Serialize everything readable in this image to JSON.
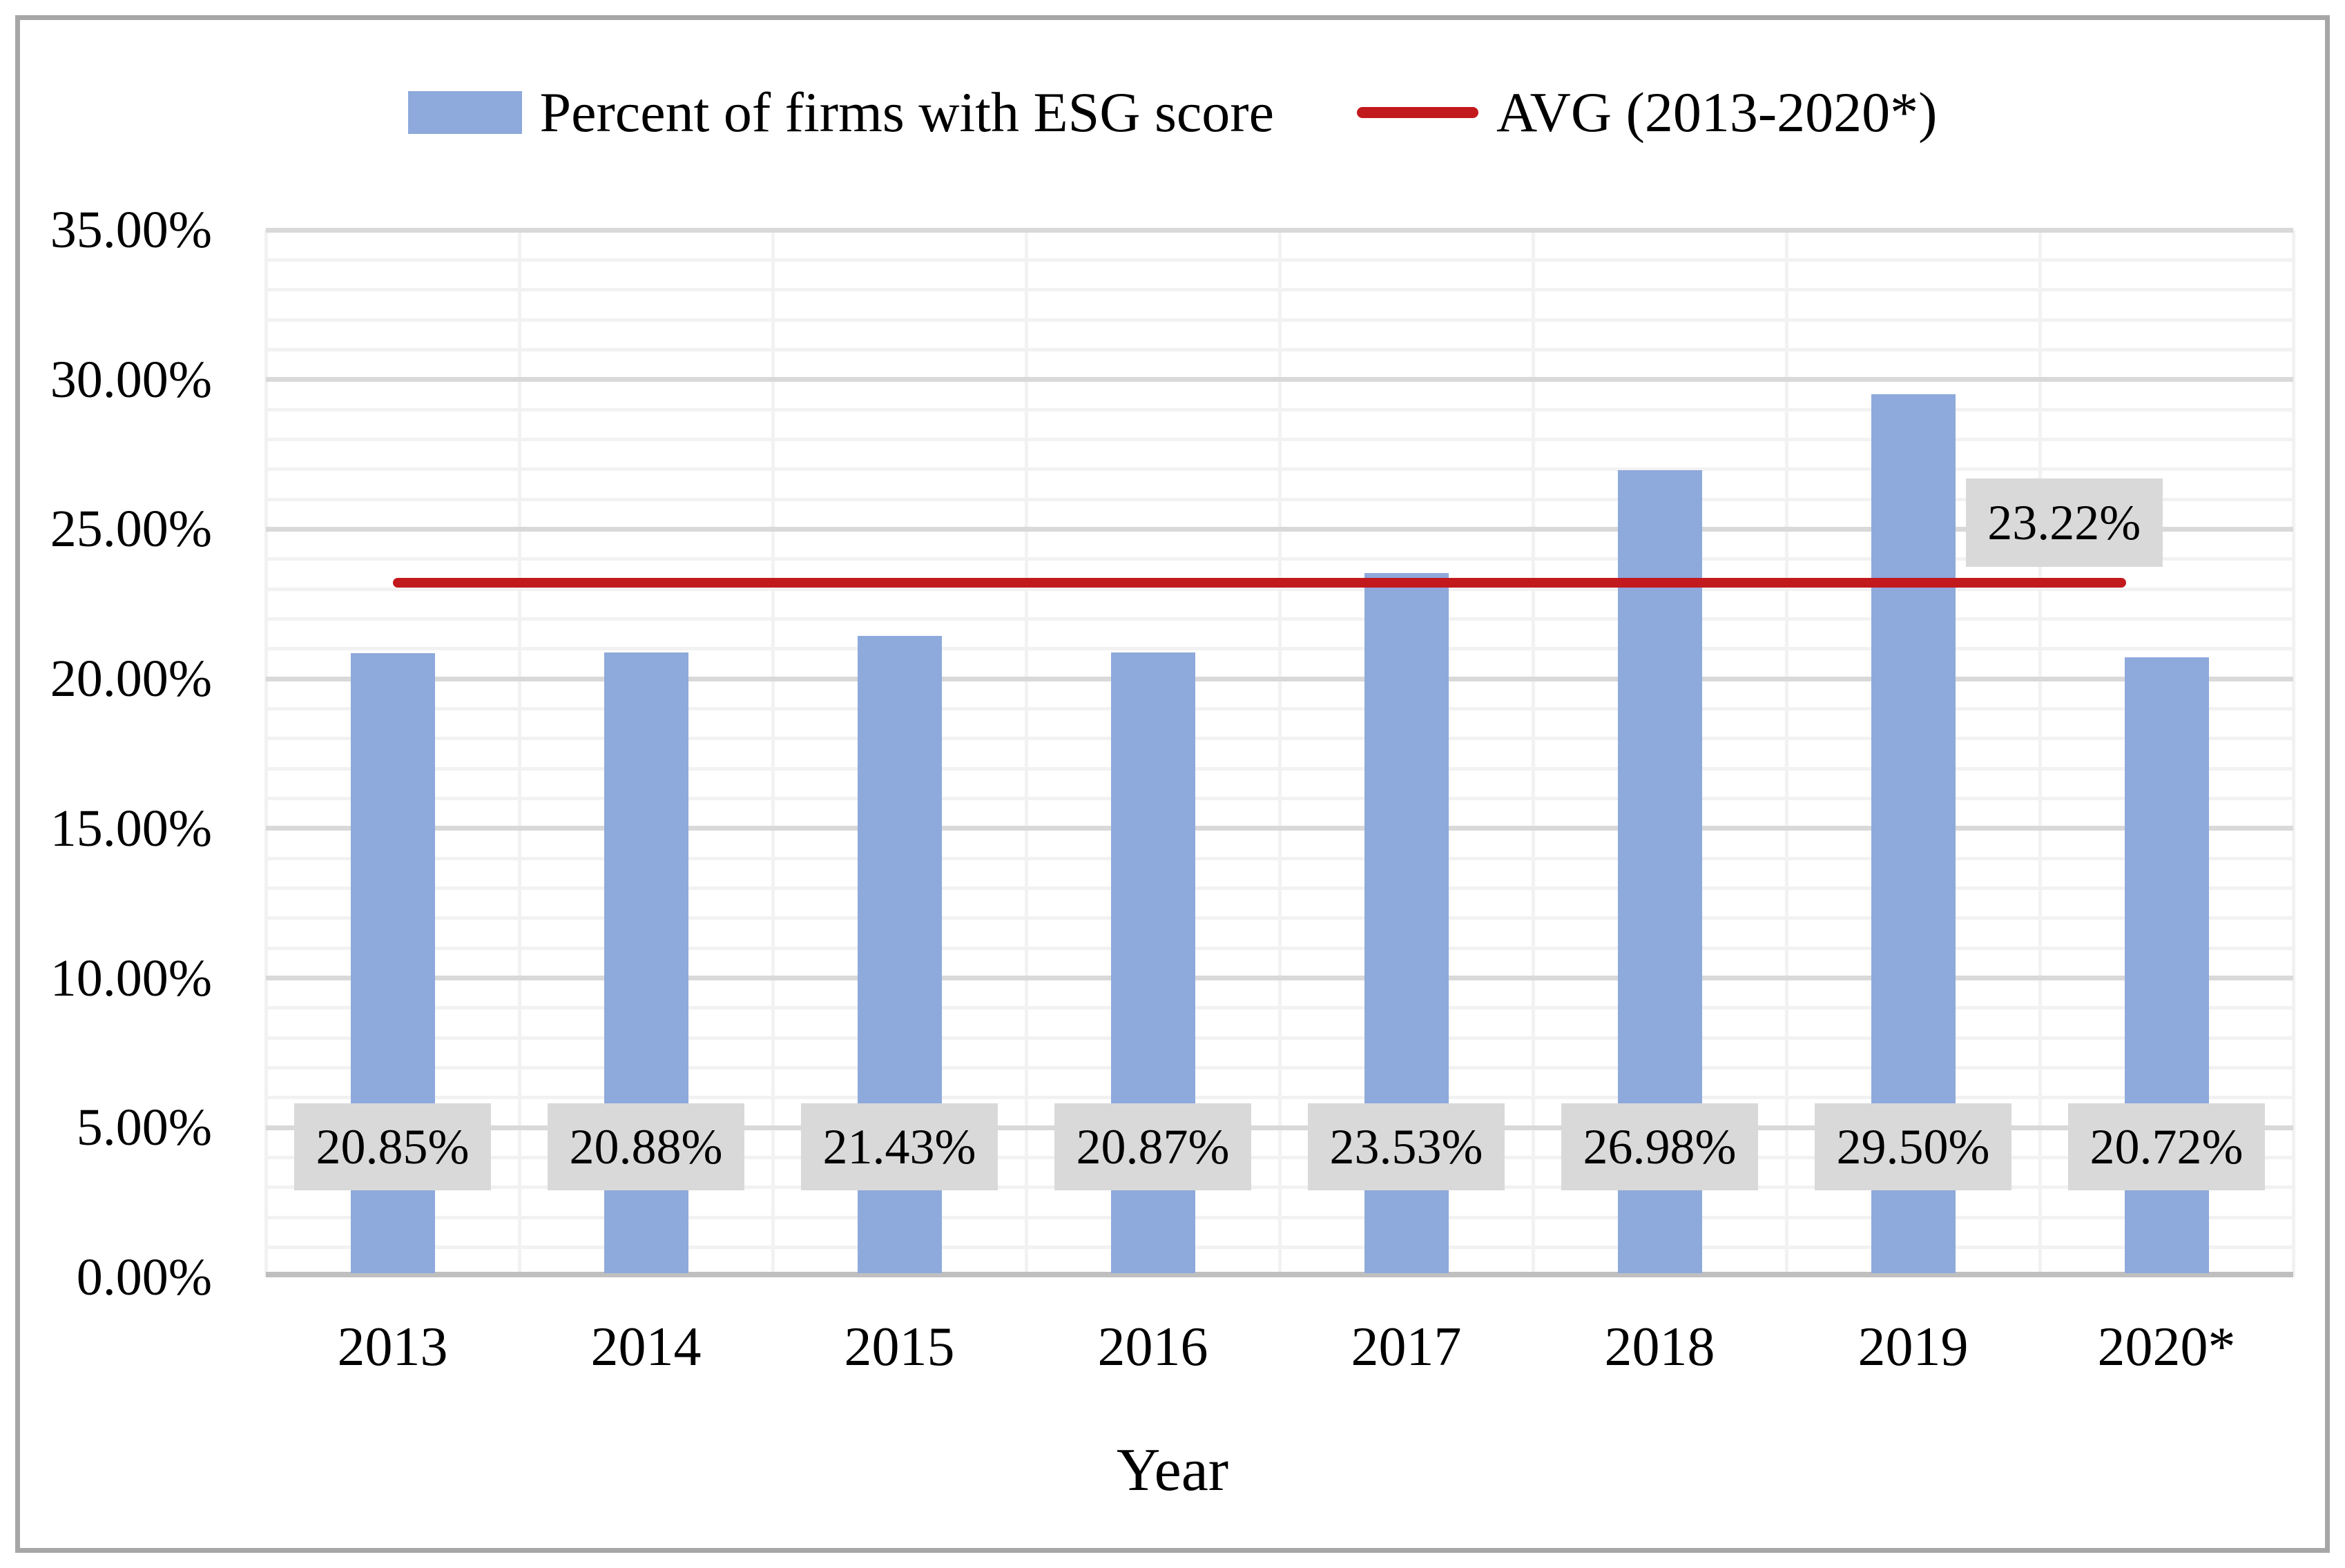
{
  "figure": {
    "background": "#ffffff",
    "border_color": "#a6a6a6"
  },
  "legend": {
    "position": "top-center",
    "items": [
      {
        "label": "Percent of firms with ESG score",
        "swatch": "bar-square",
        "color": "#8ea9db"
      },
      {
        "label": "AVG (2013-2020*)",
        "swatch": "line",
        "color": "#c2191d"
      }
    ]
  },
  "chart_data": {
    "type": "bar",
    "title": "",
    "xlabel": "Year",
    "ylabel": "",
    "categories": [
      "2013",
      "2014",
      "2015",
      "2016",
      "2017",
      "2018",
      "2019",
      "2020*"
    ],
    "series": [
      {
        "name": "Percent of firms with ESG score",
        "type": "bar",
        "color": "#8ea9db",
        "values": [
          20.85,
          20.88,
          21.43,
          20.87,
          23.53,
          26.98,
          29.5,
          20.72
        ],
        "labels": [
          "20.85%",
          "20.88%",
          "21.43%",
          "20.87%",
          "23.53%",
          "26.98%",
          "29.50%",
          "20.72%"
        ]
      },
      {
        "name": "AVG (2013-2020*)",
        "type": "constant-line",
        "color": "#c2191d",
        "value": 23.22,
        "label": "23.22%"
      }
    ],
    "ylim": [
      0,
      35
    ],
    "y_major_step": 5,
    "y_minor_step": 1,
    "y_tick_labels": [
      "0.00%",
      "5.00%",
      "10.00%",
      "15.00%",
      "20.00%",
      "25.00%",
      "30.00%",
      "35.00%"
    ],
    "grid": true,
    "data_label_box_bg": "#d9d9d9",
    "gridline_minor_color": "#f2f2f2",
    "gridline_major_color": "#d9d9d9",
    "axis_line_color": "#bfbfbf"
  }
}
